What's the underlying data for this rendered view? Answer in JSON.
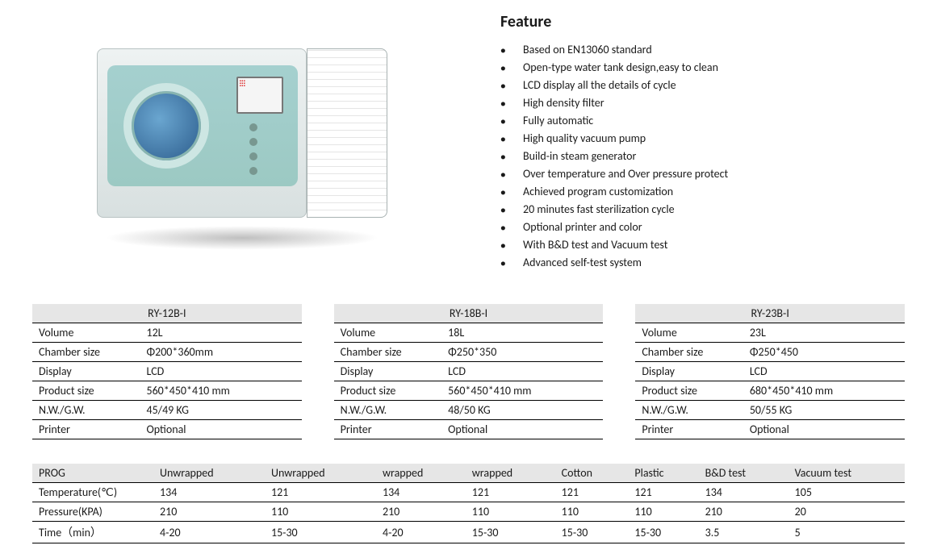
{
  "feature": {
    "title": "Feature",
    "items": [
      "Based on EN13060 standard",
      "Open-type water tank design,easy to clean",
      "LCD display all the details of cycle",
      "High density filter",
      "Fully automatic",
      "High quality vacuum pump",
      "Build-in steam generator",
      "Over temperature and Over pressure protect",
      "Achieved program customization",
      "20 minutes fast sterilization cycle",
      "Optional printer and color",
      "With B&D test and Vacuum test",
      "Advanced self-test system"
    ]
  },
  "specs": [
    {
      "model": "RY-12B-I",
      "rows": [
        [
          "Volume",
          "12L"
        ],
        [
          "Chamber size",
          "Φ200*360mm"
        ],
        [
          "Display",
          "LCD"
        ],
        [
          "Product size",
          "560*450*410 mm"
        ],
        [
          "N.W./G.W.",
          "45/49 KG"
        ],
        [
          "Printer",
          "Optional"
        ]
      ]
    },
    {
      "model": "RY-18B-I",
      "rows": [
        [
          "Volume",
          "18L"
        ],
        [
          "Chamber size",
          "Φ250*350"
        ],
        [
          "Display",
          "LCD"
        ],
        [
          "Product size",
          "560*450*410 mm"
        ],
        [
          "N.W./G.W.",
          "48/50 KG"
        ],
        [
          "Printer",
          "Optional"
        ]
      ]
    },
    {
      "model": "RY-23B-I",
      "rows": [
        [
          "Volume",
          "23L"
        ],
        [
          "Chamber size",
          "Φ250*450"
        ],
        [
          "Display",
          "LCD"
        ],
        [
          "Product size",
          "680*450*410 mm"
        ],
        [
          "N.W./G.W.",
          "50/55 KG"
        ],
        [
          "Printer",
          "Optional"
        ]
      ]
    }
  ],
  "prog": {
    "columns": [
      "PROG",
      "Unwrapped",
      "Unwrapped",
      "wrapped",
      "wrapped",
      "Cotton",
      "Plastic",
      "B&D test",
      "Vacuum test"
    ],
    "rows": [
      [
        "Temperature(℃)",
        "134",
        "121",
        "134",
        "121",
        "121",
        "121",
        "134",
        "105"
      ],
      [
        "Pressure(KPA)",
        "210",
        "110",
        "210",
        "110",
        "110",
        "110",
        "210",
        "20"
      ],
      [
        "Time（min）",
        "4-20",
        "15-30",
        "4-20",
        "15-30",
        "15-30",
        "15-30",
        "3.5",
        "5"
      ]
    ]
  },
  "colors": {
    "header_bg": "#e6e6e6",
    "border": "#000000",
    "text": "#1a1a1a"
  }
}
